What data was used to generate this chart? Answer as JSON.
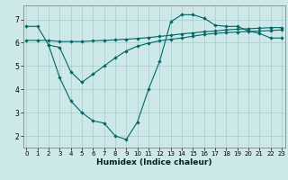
{
  "xlabel": "Humidex (Indice chaleur)",
  "bg_color": "#cce8e8",
  "grid_color": "#aacccc",
  "line_color": "#006666",
  "xlim": [
    -0.3,
    23.3
  ],
  "ylim": [
    1.5,
    7.6
  ],
  "yticks": [
    2,
    3,
    4,
    5,
    6,
    7
  ],
  "xticks": [
    0,
    1,
    2,
    3,
    4,
    5,
    6,
    7,
    8,
    9,
    10,
    11,
    12,
    13,
    14,
    15,
    16,
    17,
    18,
    19,
    20,
    21,
    22,
    23
  ],
  "line1_x": [
    0,
    1,
    2,
    3,
    4,
    5,
    6,
    7,
    8,
    9,
    10,
    11,
    12,
    13,
    14,
    15,
    16,
    17,
    18,
    19,
    20,
    21,
    22,
    23
  ],
  "line1_y": [
    6.7,
    6.7,
    5.9,
    4.5,
    3.5,
    3.0,
    2.65,
    2.55,
    2.0,
    1.85,
    2.6,
    4.0,
    5.2,
    6.9,
    7.2,
    7.2,
    7.05,
    6.75,
    6.7,
    6.7,
    6.5,
    6.4,
    6.2,
    6.2
  ],
  "line2_x": [
    0,
    1,
    2,
    3,
    4,
    5,
    6,
    7,
    8,
    9,
    10,
    11,
    12,
    13,
    14,
    15,
    16,
    17,
    18,
    19,
    20,
    21,
    22,
    23
  ],
  "line2_y": [
    6.1,
    6.1,
    6.1,
    6.05,
    6.05,
    6.05,
    6.08,
    6.1,
    6.12,
    6.15,
    6.18,
    6.22,
    6.27,
    6.32,
    6.38,
    6.42,
    6.47,
    6.5,
    6.55,
    6.58,
    6.6,
    6.62,
    6.65,
    6.65
  ],
  "line3_x": [
    2,
    3,
    4,
    5,
    6,
    7,
    8,
    9,
    10,
    11,
    12,
    13,
    14,
    15,
    16,
    17,
    18,
    19,
    20,
    21,
    22,
    23
  ],
  "line3_y": [
    5.9,
    5.8,
    4.75,
    4.3,
    4.65,
    5.0,
    5.35,
    5.65,
    5.85,
    5.98,
    6.08,
    6.15,
    6.2,
    6.28,
    6.35,
    6.4,
    6.43,
    6.46,
    6.48,
    6.5,
    6.52,
    6.55
  ]
}
